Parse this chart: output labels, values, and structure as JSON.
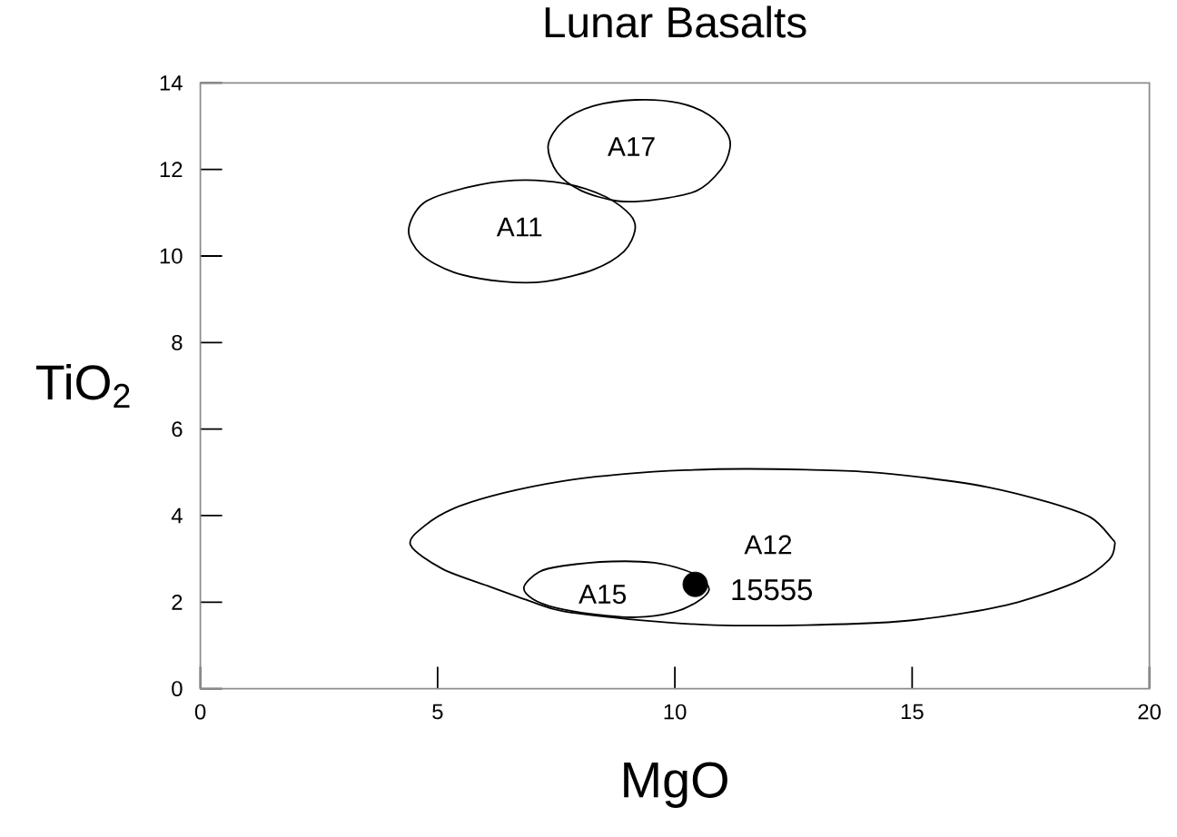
{
  "chart_data": {
    "type": "scatter",
    "title": "Lunar Basalts",
    "xlabel": "MgO",
    "ylabel": "TiO$_{2}$",
    "xlim": [
      0,
      20
    ],
    "ylim": [
      0,
      14
    ],
    "xticks": [
      0,
      5,
      10,
      15,
      20
    ],
    "yticks": [
      0,
      2,
      4,
      6,
      8,
      10,
      12,
      14
    ],
    "marker": "circle",
    "series": [
      {
        "name": "15555",
        "color": "#000000",
        "x": [
          10.43
        ],
        "values": [
          2.41
        ]
      }
    ],
    "annotations": [
      "A17",
      "A11",
      "A12",
      "A15"
    ]
  }
}
